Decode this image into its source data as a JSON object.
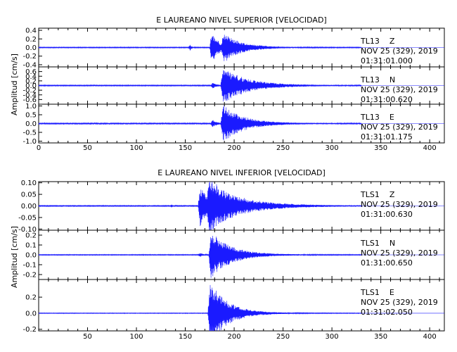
{
  "chart_data": [
    {
      "type": "line",
      "title": "E LAUREANO NIVEL SUPERIOR [VELOCIDAD]",
      "ylabel": "Amplitud [cm/s]",
      "xlim": [
        0,
        415
      ],
      "x_ticks": [
        "0",
        "50",
        "100",
        "150",
        "200",
        "250",
        "300",
        "350",
        "400"
      ],
      "trace_color": "#1a1aff",
      "channels": [
        {
          "station": "TL13",
          "component": "Z",
          "date": "NOV 25 (329), 2019",
          "time": "01:31:01.000",
          "ylim": [
            -0.45,
            0.45
          ],
          "y_ticks": [
            "0.4",
            "0.2",
            "0.0",
            "-0.2",
            "-0.4"
          ],
          "peak": 0.42,
          "bursts": [
            {
              "t": 153,
              "w": 2,
              "a": 0.07,
              "dur": 3
            },
            {
              "t": 175,
              "w": 2,
              "a": 0.42,
              "dur": 14
            },
            {
              "t": 187,
              "w": 2,
              "a": 0.32,
              "dur": 40
            }
          ],
          "noise": 0.01
        },
        {
          "station": "TL13",
          "component": "N",
          "date": "NOV 25 (329), 2019",
          "time": "01:31:00.620",
          "ylim": [
            -0.8,
            0.8
          ],
          "y_ticks": [
            "0.6",
            "0.4",
            "0.2",
            "0.0",
            "-0.2",
            "-0.4",
            "-0.6"
          ],
          "peak": 0.75,
          "bursts": [
            {
              "t": 176,
              "w": 2,
              "a": 0.12,
              "dur": 8
            },
            {
              "t": 186,
              "w": 3,
              "a": 0.75,
              "dur": 55
            }
          ],
          "noise": 0.02
        },
        {
          "station": "TL13",
          "component": "E",
          "date": "NOV 25 (329), 2019",
          "time": "01:31:01.175",
          "ylim": [
            -1.1,
            1.1
          ],
          "y_ticks": [
            "1.0",
            "0.5",
            "0.0",
            "-0.5",
            "-1.0"
          ],
          "peak": 1.05,
          "bursts": [
            {
              "t": 176,
              "w": 2,
              "a": 0.2,
              "dur": 8
            },
            {
              "t": 186,
              "w": 3,
              "a": 1.05,
              "dur": 45
            }
          ],
          "noise": 0.03
        }
      ]
    },
    {
      "type": "line",
      "title": "E LAUREANO NIVEL INFERIOR [VELOCIDAD]",
      "ylabel": "Amplitud [cm/s]",
      "xlim": [
        0,
        415
      ],
      "x_ticks": [
        "",
        "50",
        "100",
        "150",
        "200",
        "250",
        "300",
        "350",
        "400"
      ],
      "trace_color": "#1a1aff",
      "channels": [
        {
          "station": "TLS1",
          "component": "Z",
          "date": "NOV 25 (329), 2019",
          "time": "01:31:00.630",
          "ylim": [
            -0.105,
            0.105
          ],
          "y_ticks": [
            "0.10",
            "0.05",
            "0.00",
            "-0.05",
            "-0.10"
          ],
          "peak": 0.1,
          "bursts": [
            {
              "t": 134,
              "w": 2,
              "a": 0.005,
              "dur": 3
            },
            {
              "t": 163,
              "w": 2,
              "a": 0.09,
              "dur": 20
            },
            {
              "t": 172,
              "w": 3,
              "a": 0.1,
              "dur": 70
            }
          ],
          "noise": 0.002
        },
        {
          "station": "TLS1",
          "component": "N",
          "date": "NOV 25 (329), 2019",
          "time": "01:31:00.650",
          "ylim": [
            -0.25,
            0.25
          ],
          "y_ticks": [
            "0.2",
            "0.1",
            "0.0",
            "-0.1",
            "-0.2"
          ],
          "peak": 0.24,
          "bursts": [
            {
              "t": 163,
              "w": 2,
              "a": 0.02,
              "dur": 6
            },
            {
              "t": 174,
              "w": 2,
              "a": 0.24,
              "dur": 45
            }
          ],
          "noise": 0.004
        },
        {
          "station": "TLS1",
          "component": "E",
          "date": "NOV 25 (329), 2019",
          "time": "01:31:02.050",
          "ylim": [
            -0.22,
            0.42
          ],
          "y_ticks": [
            "0.2",
            "0.0",
            "-0.2"
          ],
          "peak": 0.4,
          "bursts": [
            {
              "t": 173,
              "w": 2,
              "a": 0.4,
              "dur": 40
            }
          ],
          "noise": 0.004
        }
      ]
    }
  ]
}
